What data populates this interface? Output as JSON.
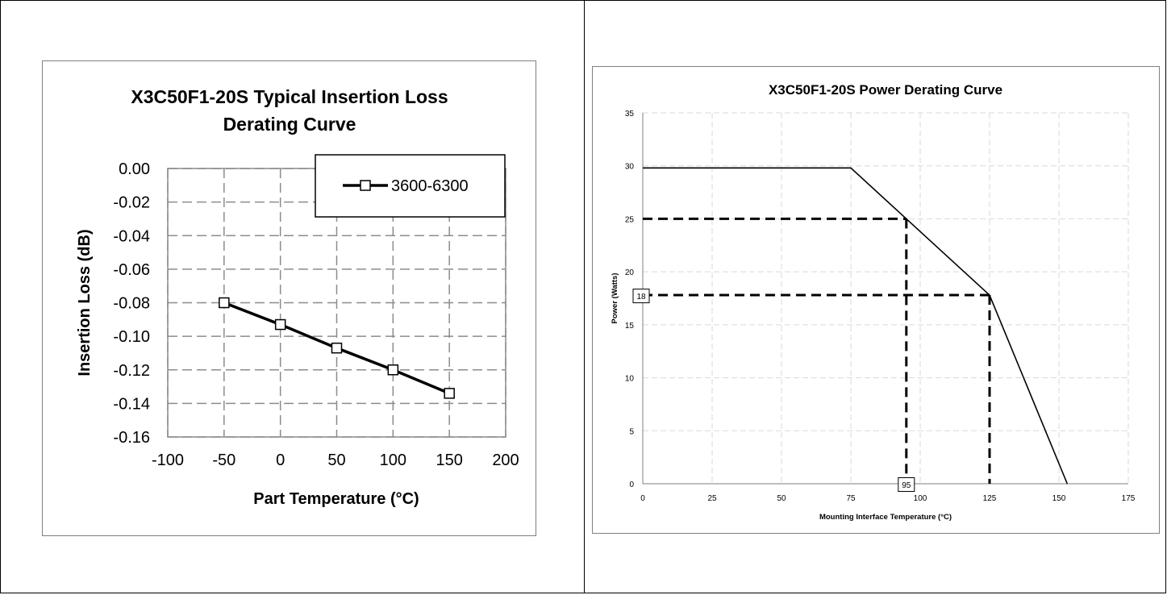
{
  "chart_data": [
    {
      "type": "line",
      "title_lines": [
        "X3C50F1-20S Typical Insertion Loss",
        "Derating Curve"
      ],
      "xlabel": "Part Temperature (°C)",
      "ylabel": "Insertion Loss (dB)",
      "xlim": [
        -100,
        200
      ],
      "ylim": [
        -0.16,
        0.0
      ],
      "xticks": [
        -100,
        -50,
        0,
        50,
        100,
        150,
        200
      ],
      "xtick_labels": [
        "-100",
        "-50",
        "0",
        "50",
        "100",
        "150",
        "200"
      ],
      "yticks": [
        0.0,
        -0.02,
        -0.04,
        -0.06,
        -0.08,
        -0.1,
        -0.12,
        -0.14,
        -0.16
      ],
      "ytick_labels": [
        "0.00",
        "-0.02",
        "-0.04",
        "-0.06",
        "-0.08",
        "-0.10",
        "-0.12",
        "-0.14",
        "-0.16"
      ],
      "grid": true,
      "legend_position": "top-right",
      "series": [
        {
          "name": "3600-6300",
          "marker": "square",
          "color": "#000000",
          "x": [
            -50,
            0,
            50,
            100,
            150
          ],
          "y": [
            -0.08,
            -0.093,
            -0.107,
            -0.12,
            -0.134
          ]
        }
      ]
    },
    {
      "type": "line",
      "title": "X3C50F1-20S Power Derating Curve",
      "xlabel": "Mounting Interface Temperature (°C)",
      "ylabel": "Power (Watts)",
      "xlim": [
        0,
        175
      ],
      "ylim": [
        0,
        35
      ],
      "xticks": [
        0,
        25,
        50,
        75,
        100,
        125,
        150,
        175
      ],
      "xtick_labels": [
        "0",
        "25",
        "50",
        "75",
        "100",
        "125",
        "150",
        "175"
      ],
      "yticks": [
        0,
        5,
        10,
        15,
        20,
        25,
        30,
        35
      ],
      "ytick_labels": [
        "0",
        "5",
        "10",
        "15",
        "20",
        "25",
        "30",
        "35"
      ],
      "grid": true,
      "series": [
        {
          "color": "#000000",
          "x": [
            0,
            75,
            95,
            125,
            153
          ],
          "y": [
            29.8,
            29.8,
            25,
            17.8,
            0
          ]
        }
      ],
      "reference_lines": [
        {
          "x": 95,
          "y": 25
        },
        {
          "x": 125,
          "y": 17.8
        }
      ],
      "annotations": [
        {
          "text": "18",
          "x": 0,
          "y": 17.8,
          "axis": "y"
        },
        {
          "text": "95",
          "x": 95,
          "y": 0,
          "axis": "x"
        }
      ]
    }
  ]
}
